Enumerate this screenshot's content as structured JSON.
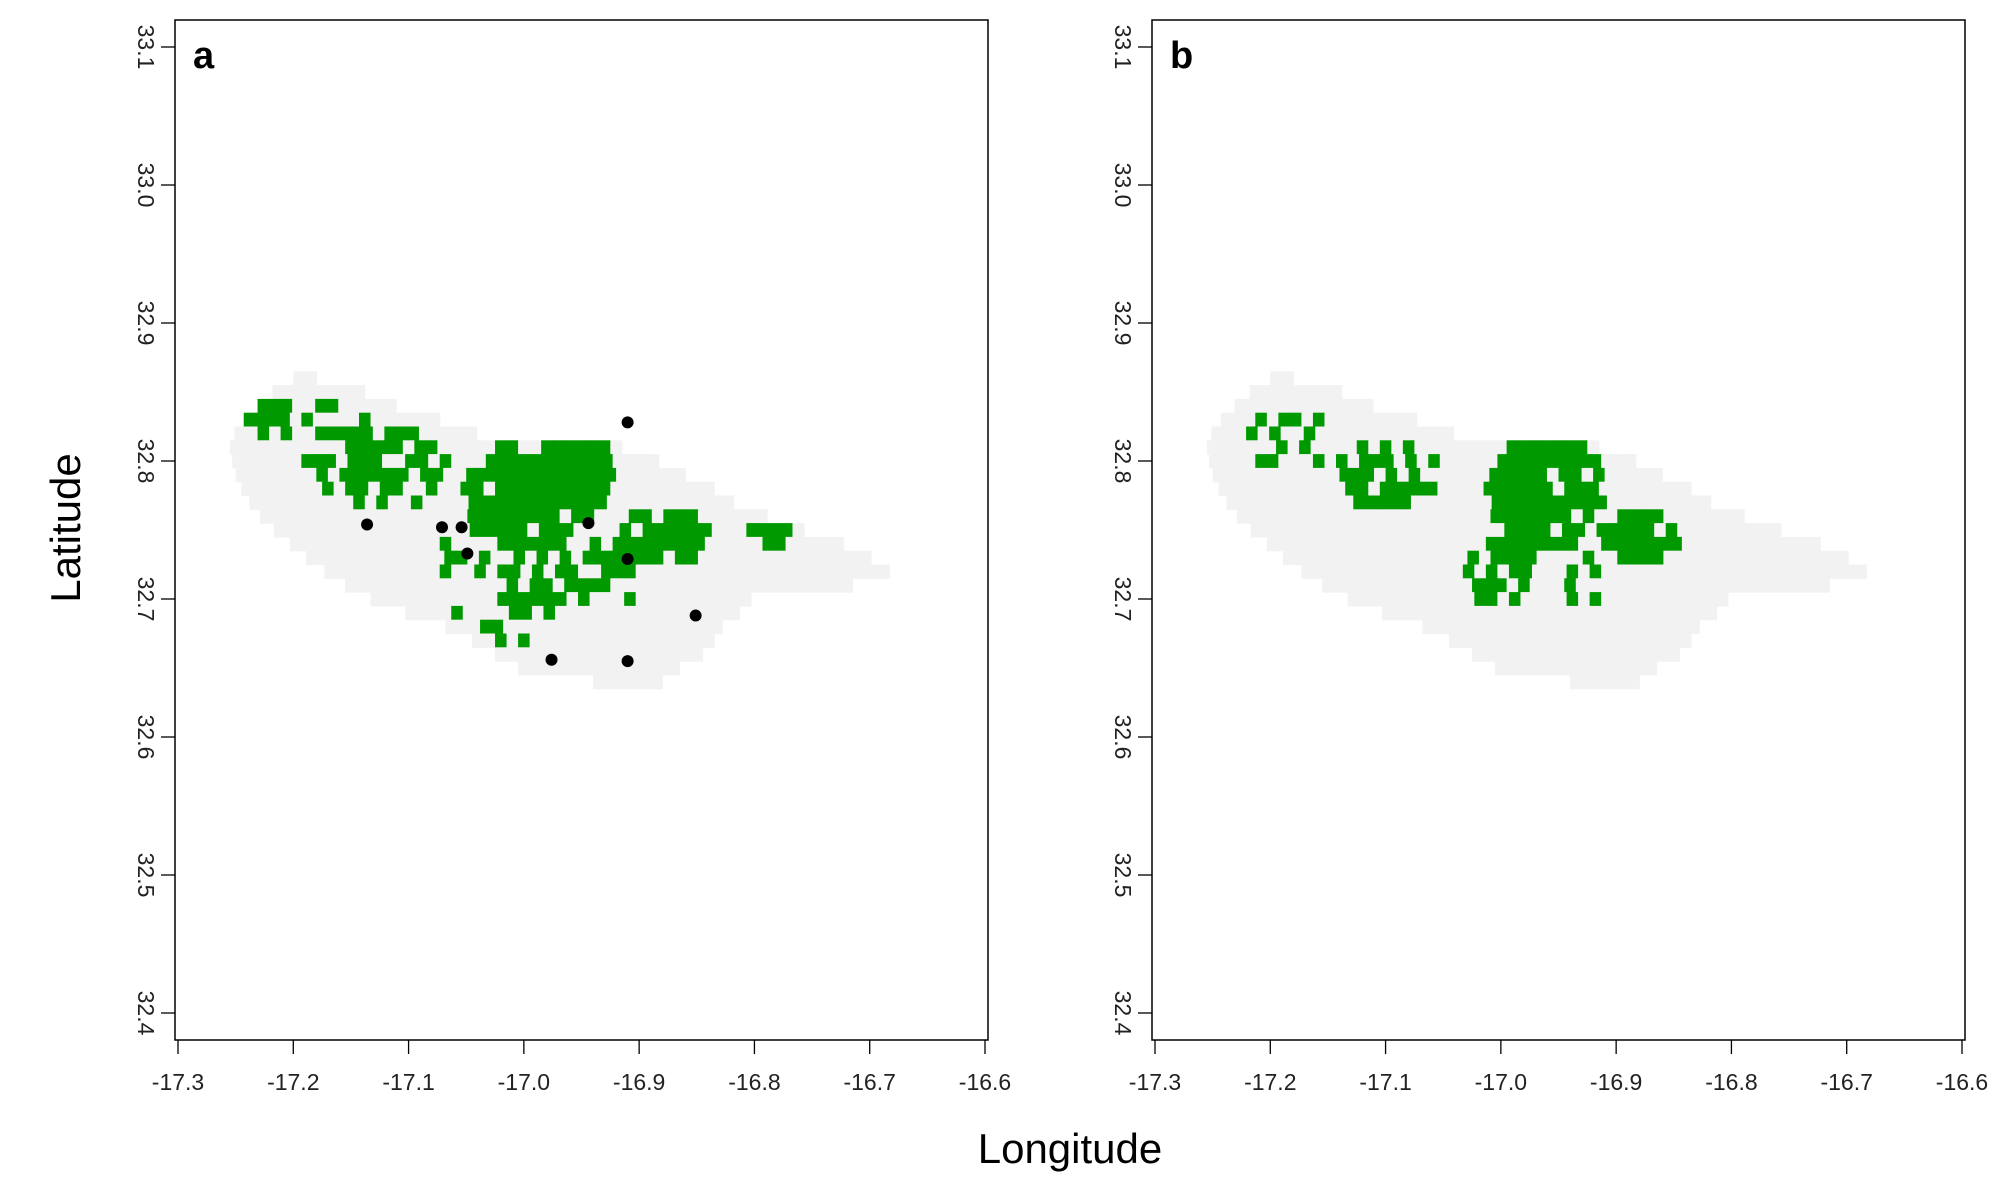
{
  "chart_data": {
    "type": "map",
    "xlabel": "Longitude",
    "ylabel": "Latitude",
    "xlim": [
      -17.3,
      -16.6
    ],
    "ylim": [
      32.4,
      33.1
    ],
    "x_ticks": [
      "-17.3",
      "-17.2",
      "-17.1",
      "-17.0",
      "-16.9",
      "-16.8",
      "-16.7",
      "-16.6"
    ],
    "y_ticks": [
      "32.4",
      "32.5",
      "32.6",
      "32.7",
      "32.8",
      "32.9",
      "33.0",
      "33.1"
    ],
    "cell_size_deg": 0.01,
    "colors": {
      "island": "#f2f2f2",
      "suitable": "#009900",
      "occurrence": "#000000"
    },
    "panels": [
      {
        "letter": "a",
        "occurrence_points": [
          {
            "lon": -17.136,
            "lat": 32.754
          },
          {
            "lon": -17.071,
            "lat": 32.752
          },
          {
            "lon": -17.054,
            "lat": 32.752
          },
          {
            "lon": -17.049,
            "lat": 32.733
          },
          {
            "lon": -16.944,
            "lat": 32.755
          },
          {
            "lon": -16.91,
            "lat": 32.828
          },
          {
            "lon": -16.91,
            "lat": 32.729
          },
          {
            "lon": -16.851,
            "lat": 32.688
          },
          {
            "lon": -16.976,
            "lat": 32.656
          },
          {
            "lon": -16.91,
            "lat": 32.655
          }
        ]
      },
      {
        "letter": "b",
        "occurrence_points": []
      }
    ]
  }
}
